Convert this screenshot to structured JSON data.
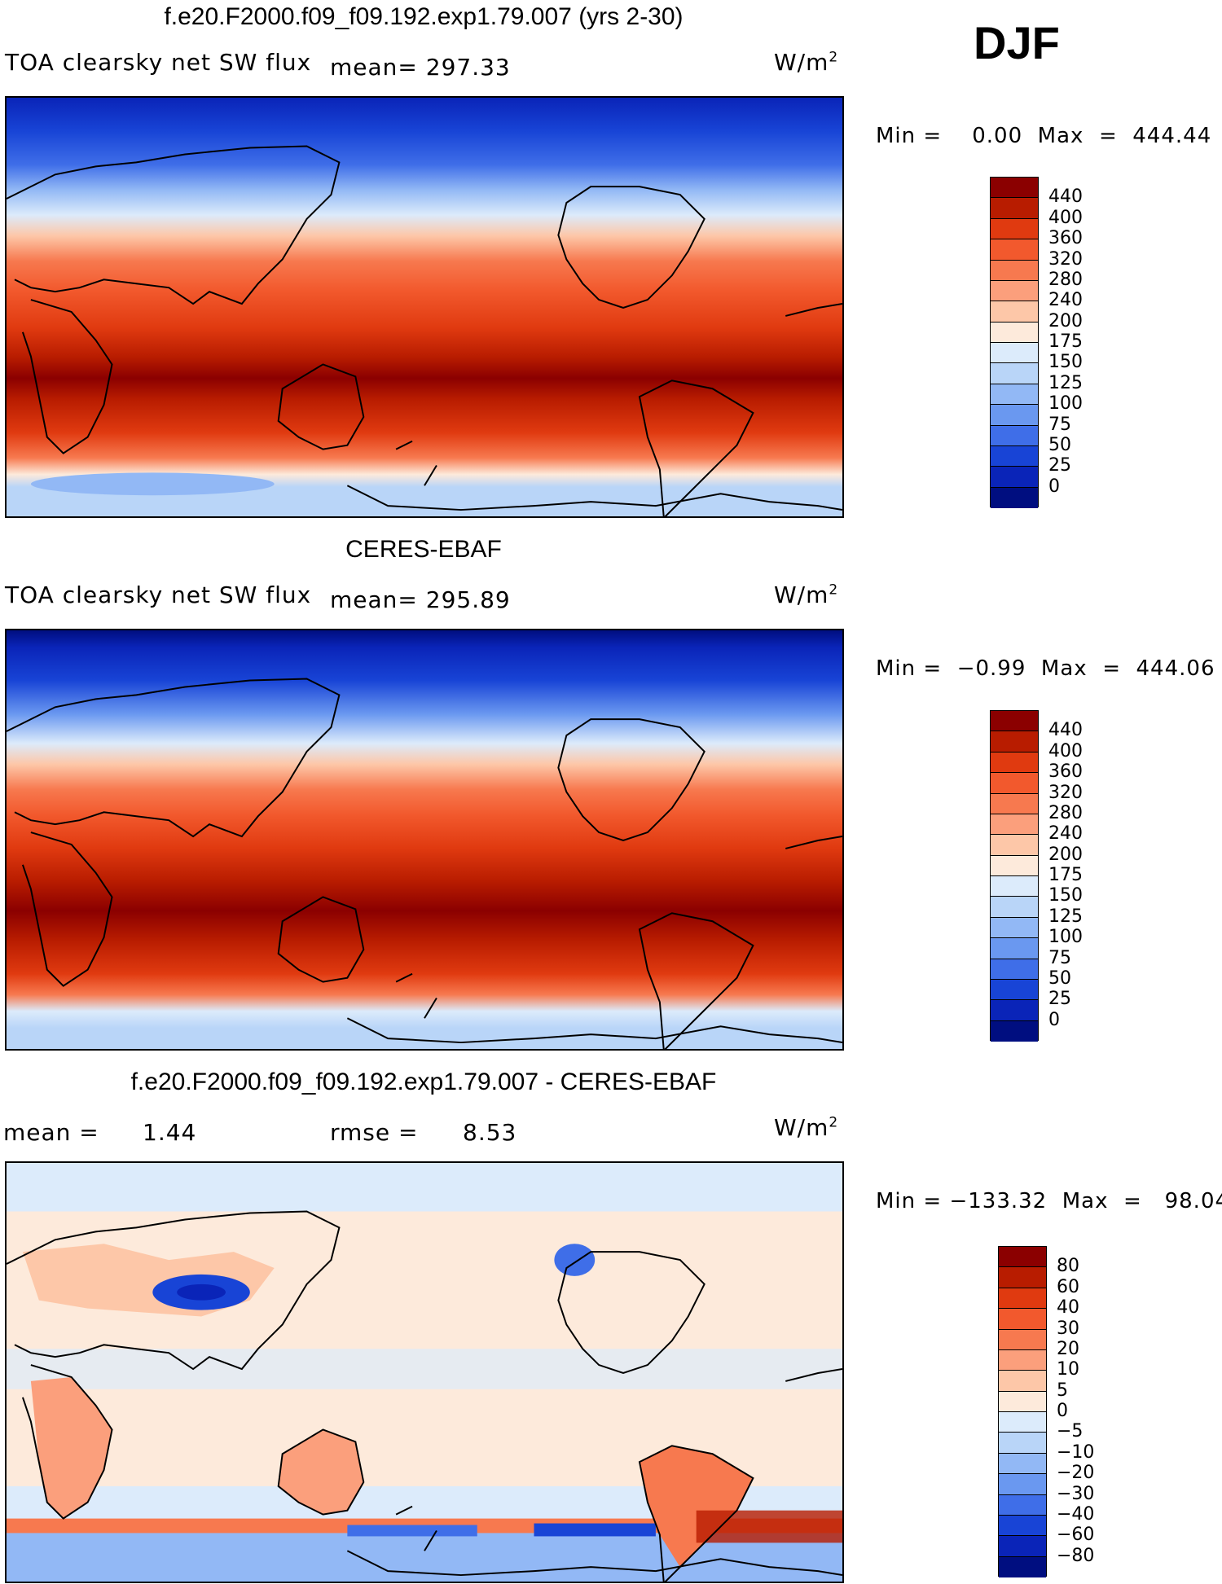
{
  "season": "DJF",
  "panels": [
    {
      "title": "f.e20.F2000.f09_f09.192.exp1.79.007 (yrs 2-30)",
      "variable": "TOA clearsky net SW flux",
      "stat": "mean= 297.33",
      "units_base": "W/m",
      "units_exp": "2",
      "minmax": "Min =    0.00  Max  =  444.44",
      "levels": [
        "440",
        "400",
        "360",
        "320",
        "280",
        "240",
        "200",
        "175",
        "150",
        "125",
        "100",
        "75",
        "50",
        "25",
        "0"
      ],
      "colors": [
        "#8b0000",
        "#b81c00",
        "#e03a10",
        "#f2592d",
        "#f7794f",
        "#fb9f7c",
        "#fdc7a8",
        "#fdeadb",
        "#dcebfb",
        "#b9d5f8",
        "#92b8f5",
        "#6a98f0",
        "#3f6ee8",
        "#1844d6",
        "#0a24b8",
        "#000e80"
      ]
    },
    {
      "title": "CERES-EBAF",
      "variable": "TOA clearsky net SW flux",
      "stat": "mean= 295.89",
      "units_base": "W/m",
      "units_exp": "2",
      "minmax": "Min =  −0.99  Max  =  444.06",
      "levels": [
        "440",
        "400",
        "360",
        "320",
        "280",
        "240",
        "200",
        "175",
        "150",
        "125",
        "100",
        "75",
        "50",
        "25",
        "0"
      ],
      "colors": [
        "#8b0000",
        "#b81c00",
        "#e03a10",
        "#f2592d",
        "#f7794f",
        "#fb9f7c",
        "#fdc7a8",
        "#fdeadb",
        "#dcebfb",
        "#b9d5f8",
        "#92b8f5",
        "#6a98f0",
        "#3f6ee8",
        "#1844d6",
        "#0a24b8",
        "#000e80"
      ]
    },
    {
      "title": "f.e20.F2000.f09_f09.192.exp1.79.007 - CERES-EBAF",
      "mean_label": "mean =",
      "mean_value": "1.44",
      "rmse_label": "rmse =",
      "rmse_value": "8.53",
      "units_base": "W/m",
      "units_exp": "2",
      "minmax": "Min = −133.32  Max  =   98.04",
      "levels": [
        "80",
        "60",
        "40",
        "30",
        "20",
        "10",
        "5",
        "0",
        "−5",
        "−10",
        "−20",
        "−30",
        "−40",
        "−60",
        "−80"
      ],
      "colors": [
        "#8b0000",
        "#b81c00",
        "#e03a10",
        "#f2592d",
        "#f7794f",
        "#fb9f7c",
        "#fdc7a8",
        "#fdeadb",
        "#dcebfb",
        "#b9d5f8",
        "#92b8f5",
        "#6a98f0",
        "#3f6ee8",
        "#1844d6",
        "#0a24b8",
        "#000e80"
      ]
    }
  ]
}
